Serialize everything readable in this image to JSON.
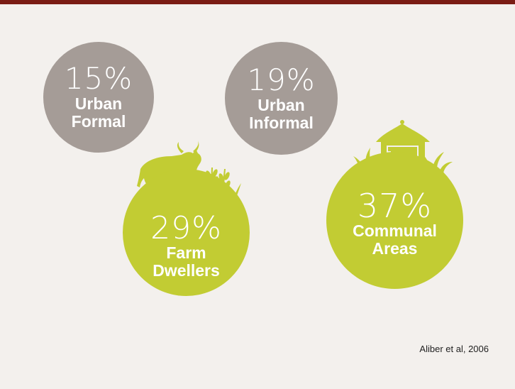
{
  "chart_data": {
    "type": "bubble",
    "categories": [
      "Urban Formal",
      "Urban Informal",
      "Farm Dwellers",
      "Communal Areas"
    ],
    "values": [
      15,
      19,
      29,
      37
    ],
    "unit": "%",
    "bubbles": [
      {
        "pct": "15%",
        "line1": "Urban",
        "line2": "Formal",
        "color": "#a59c97"
      },
      {
        "pct": "19%",
        "line1": "Urban",
        "line2": "Informal",
        "color": "#a59c97"
      },
      {
        "pct": "29%",
        "line1": "Farm",
        "line2": "Dwellers",
        "color": "#c2cc33"
      },
      {
        "pct": "37%",
        "line1": "Communal",
        "line2": "Areas",
        "color": "#c2cc33"
      }
    ],
    "icons": [
      "cow-icon",
      "wheat-icon",
      "hut-icon",
      "grass-icon"
    ]
  },
  "source": "Aliber et al, 2006",
  "colors": {
    "top_bar": "#7a1c14",
    "background": "#f3f0ed",
    "urban": "#a59c97",
    "rural": "#c2cc33"
  }
}
